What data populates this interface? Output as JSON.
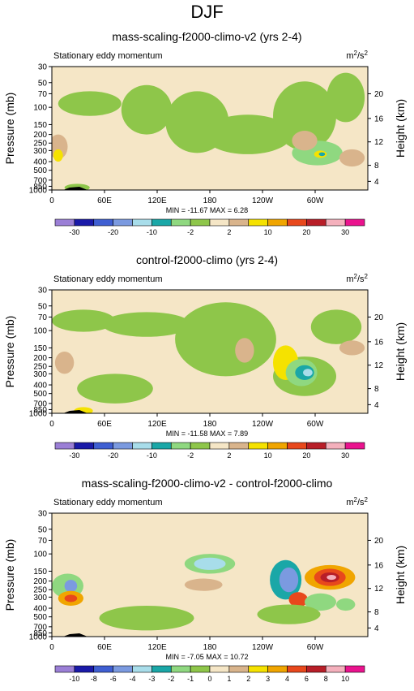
{
  "page_title": "DJF",
  "colors": {
    "levels": [
      "#9b7fd6",
      "#1a1aa8",
      "#3f5fd2",
      "#7b9ae0",
      "#a8ddea",
      "#1aa7a7",
      "#8fd880",
      "#8ec64a",
      "#f5e6c6",
      "#d9b48c",
      "#f5e200",
      "#f0a500",
      "#e8481c",
      "#b81e28",
      "#f4b0bc",
      "#ea138e"
    ],
    "background_level": 8
  },
  "chart_data": [
    {
      "type": "heatmap",
      "title": "mass-scaling-f2000-climo-v2 (yrs 2-4)",
      "subtitle_left": "Stationary eddy momentum",
      "units": "m2/s2",
      "units_base": "m",
      "units_sup1": "2",
      "units_mid": "/s",
      "units_sup2": "2",
      "ylabel": "Pressure (mb)",
      "ylabel_right": "Height (km)",
      "xticks": [
        "0",
        "60E",
        "120E",
        "180",
        "120W",
        "60W"
      ],
      "yticks": [
        "30",
        "50",
        "70",
        "100",
        "150",
        "200",
        "250",
        "300",
        "400",
        "500",
        "700",
        "850",
        "1000"
      ],
      "yticks_right": [
        "20",
        "16",
        "12",
        "8",
        "4"
      ],
      "min_max": "MIN = -11.67  MAX =  6.28",
      "colorbar_labels": [
        "-30",
        "-20",
        "-10",
        "-2",
        "2",
        "10",
        "20",
        "30"
      ]
    },
    {
      "type": "heatmap",
      "title": "control-f2000-climo (yrs 2-4)",
      "subtitle_left": "Stationary eddy momentum",
      "units": "m2/s2",
      "units_base": "m",
      "units_sup1": "2",
      "units_mid": "/s",
      "units_sup2": "2",
      "ylabel": "Pressure (mb)",
      "ylabel_right": "Height (km)",
      "xticks": [
        "0",
        "60E",
        "120E",
        "180",
        "120W",
        "60W"
      ],
      "yticks": [
        "30",
        "50",
        "70",
        "100",
        "150",
        "200",
        "250",
        "300",
        "400",
        "500",
        "700",
        "850",
        "1000"
      ],
      "yticks_right": [
        "20",
        "16",
        "12",
        "8",
        "4"
      ],
      "min_max": "MIN = -11.58  MAX =  7.89",
      "colorbar_labels": [
        "-30",
        "-20",
        "-10",
        "-2",
        "2",
        "10",
        "20",
        "30"
      ]
    },
    {
      "type": "heatmap",
      "title": "mass-scaling-f2000-climo-v2 - control-f2000-climo",
      "subtitle_left": "Stationary eddy momentum",
      "units": "m2/s2",
      "units_base": "m",
      "units_sup1": "2",
      "units_mid": "/s",
      "units_sup2": "2",
      "ylabel": "Pressure (mb)",
      "ylabel_right": "Height (km)",
      "xticks": [
        "0",
        "60E",
        "120E",
        "180",
        "120W",
        "60W"
      ],
      "yticks": [
        "30",
        "50",
        "70",
        "100",
        "150",
        "200",
        "250",
        "300",
        "400",
        "500",
        "700",
        "850",
        "1000"
      ],
      "yticks_right": [
        "20",
        "16",
        "12",
        "8",
        "4"
      ],
      "min_max": "MIN = -7.05  MAX = 10.72",
      "colorbar_labels": [
        "-10",
        "-8",
        "-6",
        "-4",
        "-3",
        "-2",
        "-1",
        "0",
        "1",
        "2",
        "3",
        "4",
        "6",
        "8",
        "10"
      ]
    }
  ]
}
